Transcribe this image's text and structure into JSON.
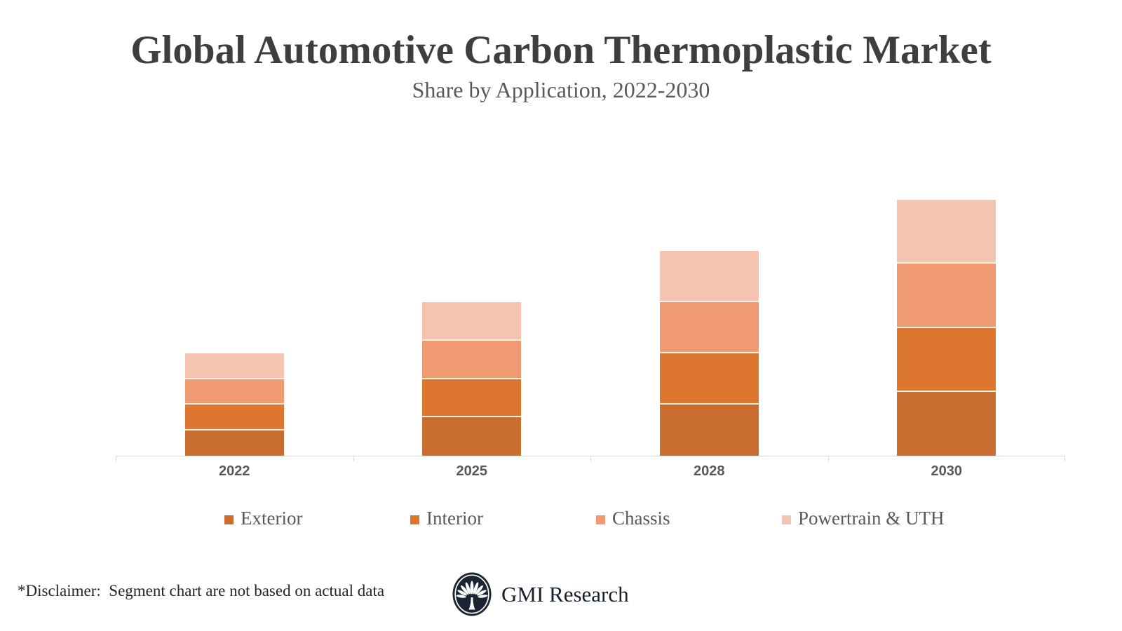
{
  "title": "Global Automotive Carbon Thermoplastic Market",
  "subtitle": "Share by Application, 2022-2030",
  "disclaimer": "*Disclaimer:  Segment chart are not based on actual data",
  "brand": {
    "name": "GMI Research",
    "logo_icon": "palm-tree-emblem",
    "logo_color": "#1b2433"
  },
  "colors": {
    "title_text": "#3e3e3e",
    "muted_text": "#595959",
    "axis_line": "#d9d9d9",
    "segment_divider": "#f9f2e5",
    "exterior": "#c96e2e",
    "interior": "#dd7730",
    "chassis": "#ef9a71",
    "powertrain_uth": "#f4c4b1"
  },
  "chart_data": {
    "type": "bar",
    "stacked": true,
    "categories": [
      "2022",
      "2025",
      "2028",
      "2030"
    ],
    "series": [
      {
        "name": "Exterior",
        "color": "#c96e2e",
        "values": [
          2.5,
          3.75,
          5.0,
          6.25
        ]
      },
      {
        "name": "Interior",
        "color": "#dd7730",
        "values": [
          2.5,
          3.75,
          5.0,
          6.25
        ]
      },
      {
        "name": "Chassis",
        "color": "#ef9a71",
        "values": [
          2.5,
          3.75,
          5.0,
          6.25
        ]
      },
      {
        "name": "Powertrain & UTH",
        "color": "#f4c4b1",
        "values": [
          2.5,
          3.75,
          5.0,
          6.25
        ]
      }
    ],
    "stack_totals": [
      10,
      15,
      20,
      25
    ],
    "title": "Global Automotive Carbon Thermoplastic Market",
    "subtitle": "Share by Application, 2022-2030",
    "xlabel": "",
    "ylabel": "",
    "ylim": [
      0,
      32
    ],
    "grid": false,
    "y_axis_visible": false,
    "legend_position": "bottom"
  }
}
